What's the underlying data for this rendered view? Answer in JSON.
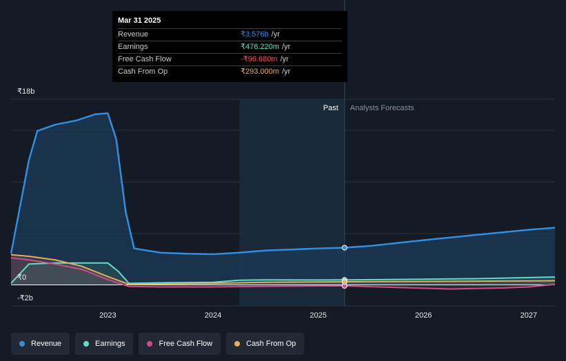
{
  "tooltip": {
    "date": "Mar 31 2025",
    "rows": [
      {
        "label": "Revenue",
        "value": "₹3.576b",
        "unit": "/yr",
        "color": "#2f8fe0"
      },
      {
        "label": "Earnings",
        "value": "₹476.220m",
        "unit": "/yr",
        "color": "#5fe0c8"
      },
      {
        "label": "Free Cash Flow",
        "value": "-₹96.680m",
        "unit": "/yr",
        "color": "#ff4d5e"
      },
      {
        "label": "Cash From Op",
        "value": "₹293.000m",
        "unit": "/yr",
        "color": "#e9ad5e"
      }
    ]
  },
  "legend": [
    {
      "label": "Revenue",
      "color": "#2f8fe0"
    },
    {
      "label": "Earnings",
      "color": "#5fe0c8"
    },
    {
      "label": "Free Cash Flow",
      "color": "#d04b8a"
    },
    {
      "label": "Cash From Op",
      "color": "#e9ad5e"
    }
  ],
  "chart_data": {
    "type": "line",
    "ytick_labels": [
      "₹18b",
      "₹0",
      "-₹2b"
    ],
    "ylim": [
      -2,
      18
    ],
    "xlim": [
      2022.08,
      2027.25
    ],
    "xticks": [
      2023,
      2024,
      2025,
      2026,
      2027
    ],
    "xtick_labels": [
      "2023",
      "2024",
      "2025",
      "2026",
      "2027"
    ],
    "gridlines_y": [
      -2,
      0,
      3,
      8,
      13,
      15,
      18
    ],
    "past_label": "Past",
    "forecast_label": "Analysts Forecasts",
    "highlight_range": [
      2024.25,
      2025.25
    ],
    "marker_x": 2025.25,
    "series": [
      {
        "name": "Revenue",
        "color": "#2f8fe0",
        "fill": true,
        "points": [
          [
            2022.08,
            3.0
          ],
          [
            2022.25,
            12.0
          ],
          [
            2022.33,
            14.8
          ],
          [
            2022.5,
            15.4
          ],
          [
            2022.7,
            15.8
          ],
          [
            2022.88,
            16.4
          ],
          [
            2023.0,
            16.5
          ],
          [
            2023.08,
            14.0
          ],
          [
            2023.17,
            7.0
          ],
          [
            2023.25,
            3.5
          ],
          [
            2023.5,
            3.1
          ],
          [
            2023.75,
            3.0
          ],
          [
            2024.0,
            2.95
          ],
          [
            2024.25,
            3.1
          ],
          [
            2024.5,
            3.3
          ],
          [
            2024.75,
            3.4
          ],
          [
            2025.0,
            3.5
          ],
          [
            2025.25,
            3.576
          ],
          [
            2025.5,
            3.75
          ],
          [
            2026.0,
            4.3
          ],
          [
            2026.5,
            4.8
          ],
          [
            2027.0,
            5.3
          ],
          [
            2027.25,
            5.5
          ]
        ]
      },
      {
        "name": "Earnings",
        "color": "#5fe0c8",
        "points": [
          [
            2022.08,
            0.15
          ],
          [
            2022.25,
            2.0
          ],
          [
            2022.5,
            2.1
          ],
          [
            2022.75,
            2.1
          ],
          [
            2023.0,
            2.1
          ],
          [
            2023.1,
            1.3
          ],
          [
            2023.2,
            0.15
          ],
          [
            2023.5,
            0.2
          ],
          [
            2024.0,
            0.25
          ],
          [
            2024.25,
            0.45
          ],
          [
            2024.5,
            0.48
          ],
          [
            2025.0,
            0.47
          ],
          [
            2025.25,
            0.476
          ],
          [
            2026.0,
            0.55
          ],
          [
            2026.5,
            0.6
          ],
          [
            2027.0,
            0.7
          ],
          [
            2027.25,
            0.75
          ]
        ]
      },
      {
        "name": "Free Cash Flow",
        "color": "#d04b8a",
        "points": [
          [
            2022.08,
            2.6
          ],
          [
            2022.25,
            2.4
          ],
          [
            2022.5,
            2.0
          ],
          [
            2022.75,
            1.5
          ],
          [
            2023.0,
            0.5
          ],
          [
            2023.2,
            -0.15
          ],
          [
            2023.5,
            -0.2
          ],
          [
            2024.0,
            -0.2
          ],
          [
            2024.5,
            -0.15
          ],
          [
            2025.0,
            -0.1
          ],
          [
            2025.25,
            -0.097
          ],
          [
            2025.75,
            -0.25
          ],
          [
            2026.25,
            -0.4
          ],
          [
            2026.75,
            -0.3
          ],
          [
            2027.0,
            -0.2
          ],
          [
            2027.25,
            0.05
          ]
        ]
      },
      {
        "name": "Cash From Op",
        "color": "#e9ad5e",
        "points": [
          [
            2022.08,
            2.9
          ],
          [
            2022.25,
            2.75
          ],
          [
            2022.5,
            2.4
          ],
          [
            2022.75,
            1.8
          ],
          [
            2023.0,
            0.8
          ],
          [
            2023.2,
            0.05
          ],
          [
            2023.5,
            0.1
          ],
          [
            2024.0,
            0.15
          ],
          [
            2024.5,
            0.25
          ],
          [
            2025.0,
            0.28
          ],
          [
            2025.25,
            0.293
          ],
          [
            2026.0,
            0.33
          ],
          [
            2026.5,
            0.36
          ],
          [
            2027.0,
            0.38
          ],
          [
            2027.25,
            0.4
          ]
        ]
      }
    ]
  }
}
